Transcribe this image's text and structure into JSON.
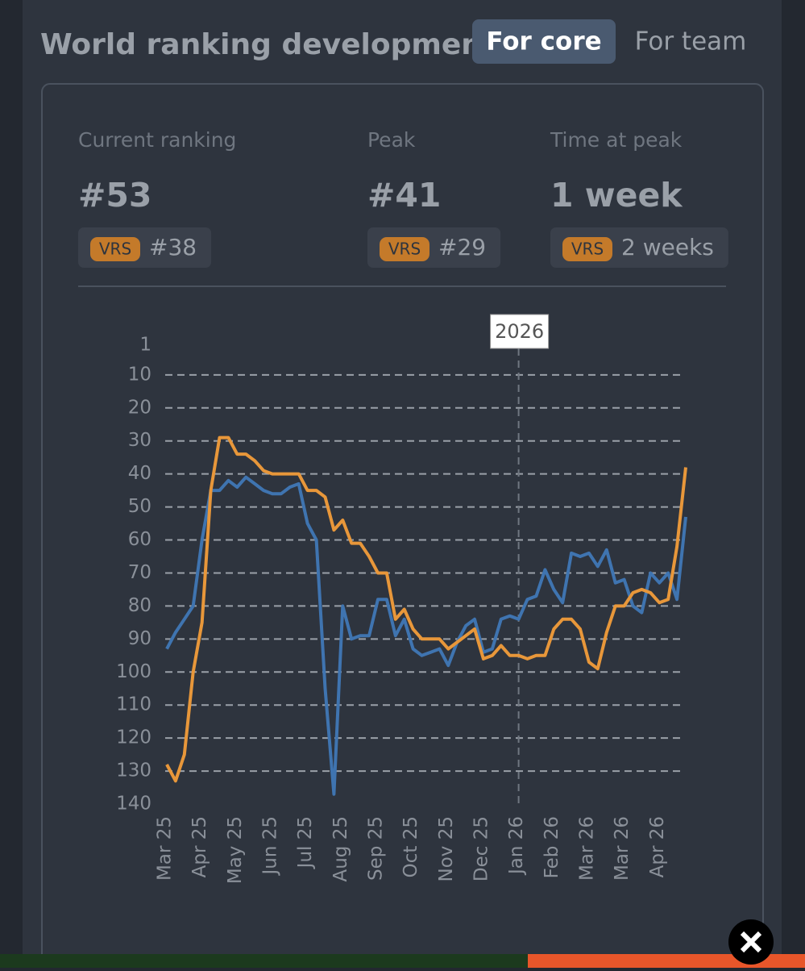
{
  "header": {
    "title": "World ranking development",
    "tabs": [
      "For core",
      "For team"
    ]
  },
  "stats": [
    {
      "label": "Current ranking",
      "value": "#53",
      "badge": "VRS",
      "badge_value": "#38"
    },
    {
      "label": "Peak",
      "value": "#41",
      "badge": "VRS",
      "badge_value": "#29"
    },
    {
      "label": "Time at peak",
      "value": "1 week",
      "badge": "VRS",
      "badge_value": "2 weeks"
    }
  ],
  "chart_data": {
    "type": "line",
    "categories": [
      "Mar 25",
      null,
      null,
      null,
      "Apr 25",
      null,
      null,
      null,
      "May 25",
      null,
      null,
      null,
      "Jun 25",
      null,
      null,
      null,
      "Jul 25",
      null,
      null,
      null,
      "Aug 25",
      null,
      null,
      null,
      "Sep 25",
      null,
      null,
      null,
      "Oct 25",
      null,
      null,
      null,
      "Nov 25",
      null,
      null,
      null,
      "Dec 25",
      null,
      null,
      null,
      "Jan 26",
      null,
      null,
      null,
      "Feb 26",
      null,
      null,
      null,
      "Mar 26",
      null,
      null,
      null,
      "Mar 26",
      null,
      null,
      null,
      "Apr 26",
      null,
      null,
      null
    ],
    "series": [
      {
        "color": "#3f74b0",
        "values": [
          93,
          88,
          84,
          80,
          60,
          45,
          45,
          42,
          44,
          41,
          43,
          45,
          46,
          46,
          44,
          43,
          55,
          60,
          105,
          137,
          80,
          90,
          89,
          89,
          78,
          78,
          89,
          84,
          93,
          95,
          94,
          93,
          98,
          91,
          86,
          84,
          94,
          93,
          84,
          83,
          84,
          78,
          77,
          69,
          75,
          79,
          64,
          65,
          64,
          68,
          63,
          73,
          72,
          80,
          82,
          70,
          73,
          70,
          78,
          53
        ]
      },
      {
        "color": "#e8973a",
        "values": [
          128,
          133,
          125,
          100,
          85,
          45,
          29,
          29,
          34,
          34,
          36,
          39,
          40,
          40,
          40,
          40,
          45,
          45,
          47,
          57,
          54,
          61,
          61,
          65,
          70,
          70,
          84,
          81,
          87,
          90,
          90,
          90,
          93,
          91,
          89,
          87,
          96,
          95,
          92,
          95,
          95,
          96,
          95,
          95,
          87,
          84,
          84,
          87,
          97,
          99,
          88,
          80,
          80,
          76,
          75,
          76,
          79,
          78,
          62,
          38
        ]
      }
    ],
    "ylim": [
      1,
      140
    ],
    "y_inverted": true,
    "yticks": [
      1,
      10,
      20,
      30,
      40,
      50,
      60,
      70,
      80,
      90,
      100,
      110,
      120,
      130,
      140
    ],
    "grid": true,
    "grid_style": "dashed",
    "annotations": [
      {
        "text": "2026",
        "at": 40
      }
    ]
  }
}
